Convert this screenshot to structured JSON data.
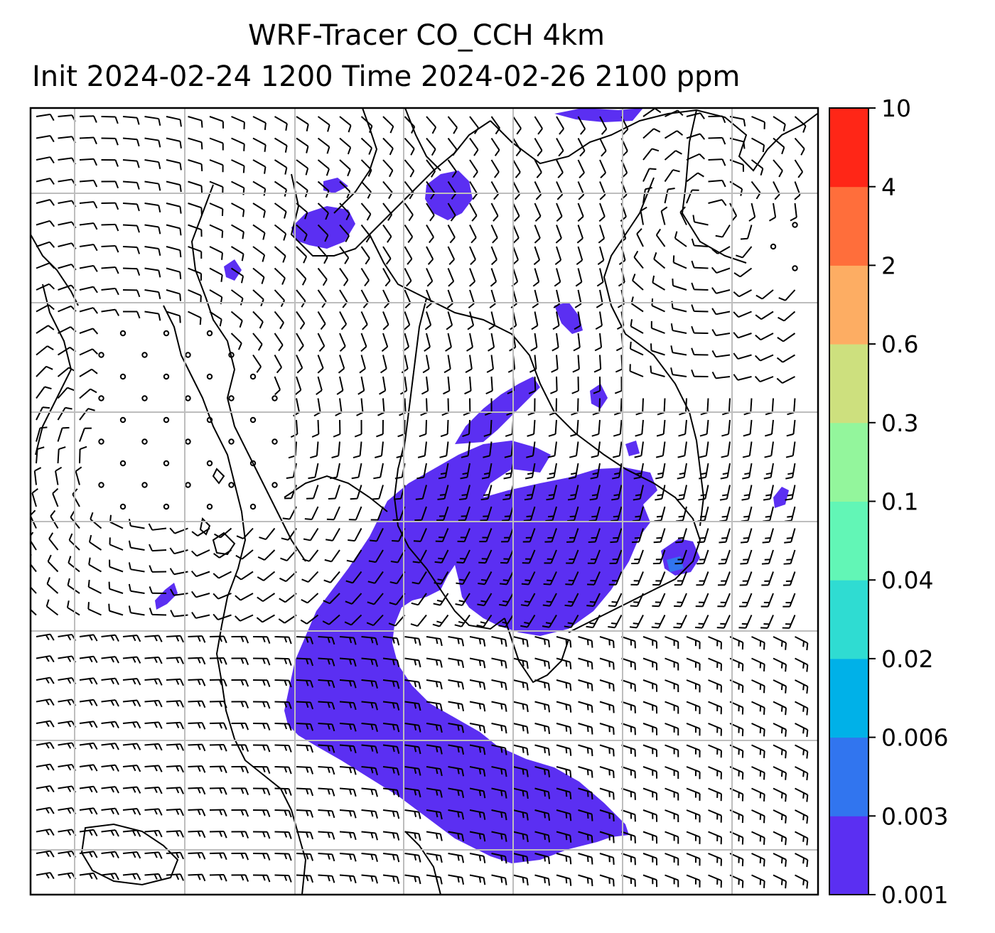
{
  "title": {
    "line1": "WRF-Tracer CO_CCH 4km",
    "line2": "Init 2024-02-24 1200 Time 2024-02-26 2100 ppm"
  },
  "colorbar": {
    "ticks": [
      "0.001",
      "0.003",
      "0.006",
      "0.02",
      "0.04",
      "0.1",
      "0.3",
      "0.6",
      "2",
      "4",
      "10"
    ],
    "colors": [
      "#5b2ff2",
      "#3175ef",
      "#00b1e8",
      "#2fdcd2",
      "#62f6b6",
      "#93f69c",
      "#cde07e",
      "#fdad63",
      "#ff6e3b",
      "#ff2617"
    ]
  },
  "map": {
    "tracer_color": "#5b2ff2",
    "hotspot_color": "#3175ef",
    "grid_color": "#bdbdbd",
    "barb_color": "#000000"
  }
}
